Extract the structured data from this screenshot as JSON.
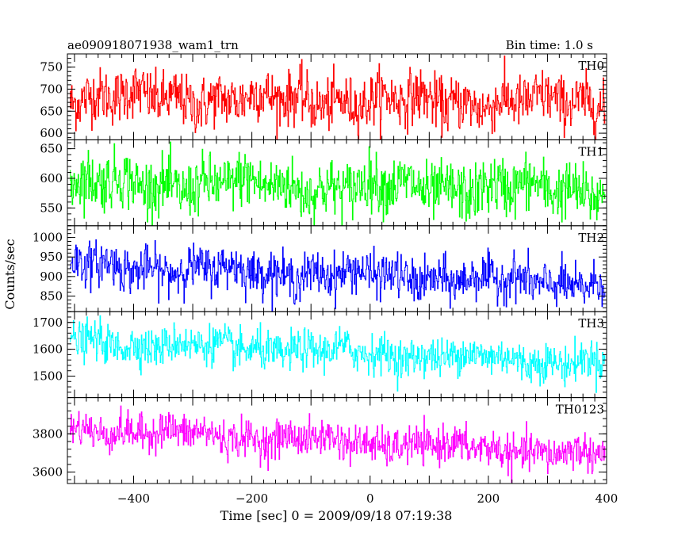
{
  "header": {
    "title": "ae090918071938_wam1_trn",
    "bin_time": "Bin time: 1.0 s"
  },
  "chart_data": {
    "type": "line",
    "title": "ae090918071938_wam1_trn",
    "xlabel": "Time [sec] 0 = 2009/09/18 07:19:38",
    "ylabel": "Counts/sec",
    "xlim": [
      -512,
      400
    ],
    "x_ticks": [
      -400,
      -200,
      0,
      200,
      400
    ],
    "x_tick_labels": [
      "−400",
      "−200",
      "0",
      "200",
      "400"
    ],
    "x_start": -508,
    "x_end": 397,
    "x_step": 1,
    "grid": false,
    "panels": [
      {
        "name": "TH0",
        "color": "#ff0000",
        "ylim": [
          585,
          780
        ],
        "y_ticks": [
          600,
          650,
          700,
          750
        ],
        "mean_start": 682,
        "mean_end": 668,
        "amplitude": 38
      },
      {
        "name": "TH1",
        "color": "#00ff00",
        "ylim": [
          520,
          665
        ],
        "y_ticks": [
          550,
          600,
          650
        ],
        "mean_start": 592,
        "mean_end": 580,
        "amplitude": 30
      },
      {
        "name": "TH2",
        "color": "#0000ff",
        "ylim": [
          810,
          1030
        ],
        "y_ticks": [
          850,
          900,
          950,
          1000
        ],
        "mean_start": 930,
        "mean_end": 880,
        "amplitude": 35
      },
      {
        "name": "TH3",
        "color": "#00ffff",
        "ylim": [
          1420,
          1740
        ],
        "y_ticks": [
          1500,
          1600,
          1700
        ],
        "mean_start": 1630,
        "mean_end": 1550,
        "amplitude": 45
      },
      {
        "name": "TH0123",
        "color": "#ff00ff",
        "ylim": [
          3540,
          3990
        ],
        "y_ticks": [
          3600,
          3800
        ],
        "mean_start": 3830,
        "mean_end": 3690,
        "amplitude": 60
      }
    ]
  }
}
